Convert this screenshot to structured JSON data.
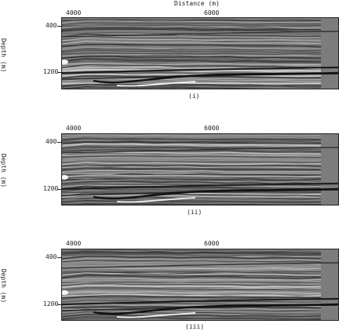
{
  "figure": {
    "x_axis_title": "Distance (m)",
    "y_axis_title": "Depth (m)",
    "panels": [
      {
        "caption": "(i)",
        "x_ticks": [
          "4000",
          "6000"
        ],
        "y_ticks": [
          "400",
          "1200"
        ]
      },
      {
        "caption": "(ii)",
        "x_ticks": [
          "4000",
          "6000"
        ],
        "y_ticks": [
          "400",
          "1200"
        ]
      },
      {
        "caption": "(iii)",
        "x_ticks": [
          "4000",
          "6000"
        ],
        "y_ticks": [
          "400",
          "1200"
        ]
      }
    ]
  }
}
